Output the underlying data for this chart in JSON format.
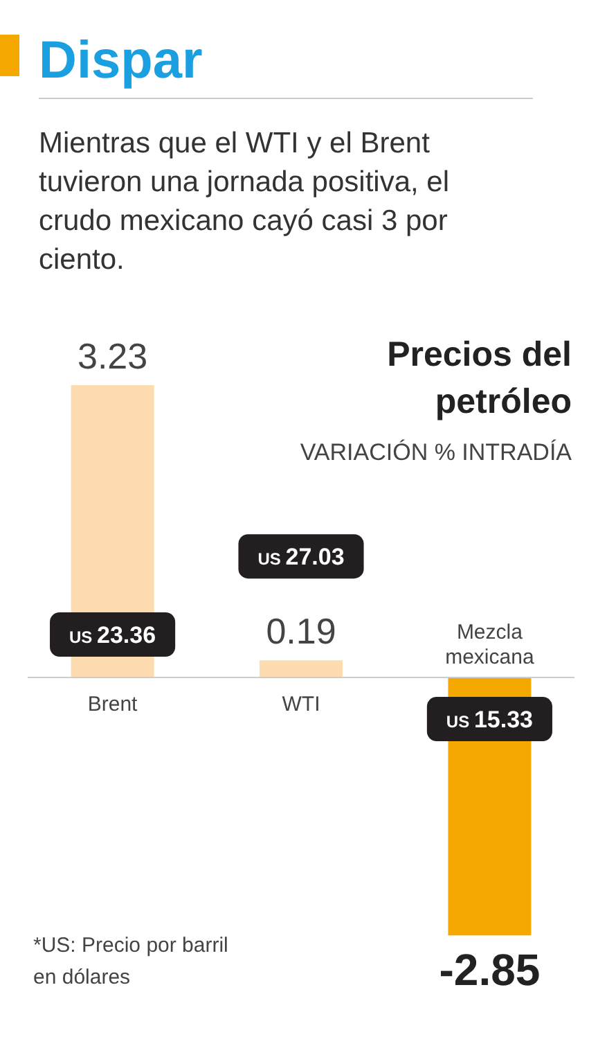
{
  "chart_data": {
    "type": "bar",
    "title": "Dispar",
    "subtitle": "Mientras que el WTI y el Brent tuvieron una jornada positiva, el crudo mexicano cayó casi 3 por ciento.",
    "categories": [
      "Brent",
      "WTI",
      "Mezcla mexicana"
    ],
    "values": [
      3.23,
      0.19,
      -2.85
    ],
    "colors": [
      "#fddcb0",
      "#fddcb0",
      "#f5a800"
    ],
    "data_labels": true,
    "annotations": [
      "US 23.36",
      "US 27.03",
      "US 15.33",
      "Precios del petróleo",
      "VARIACIÓN % INTRADÍA",
      "*US: Precio por barril en dólares"
    ]
  }
}
